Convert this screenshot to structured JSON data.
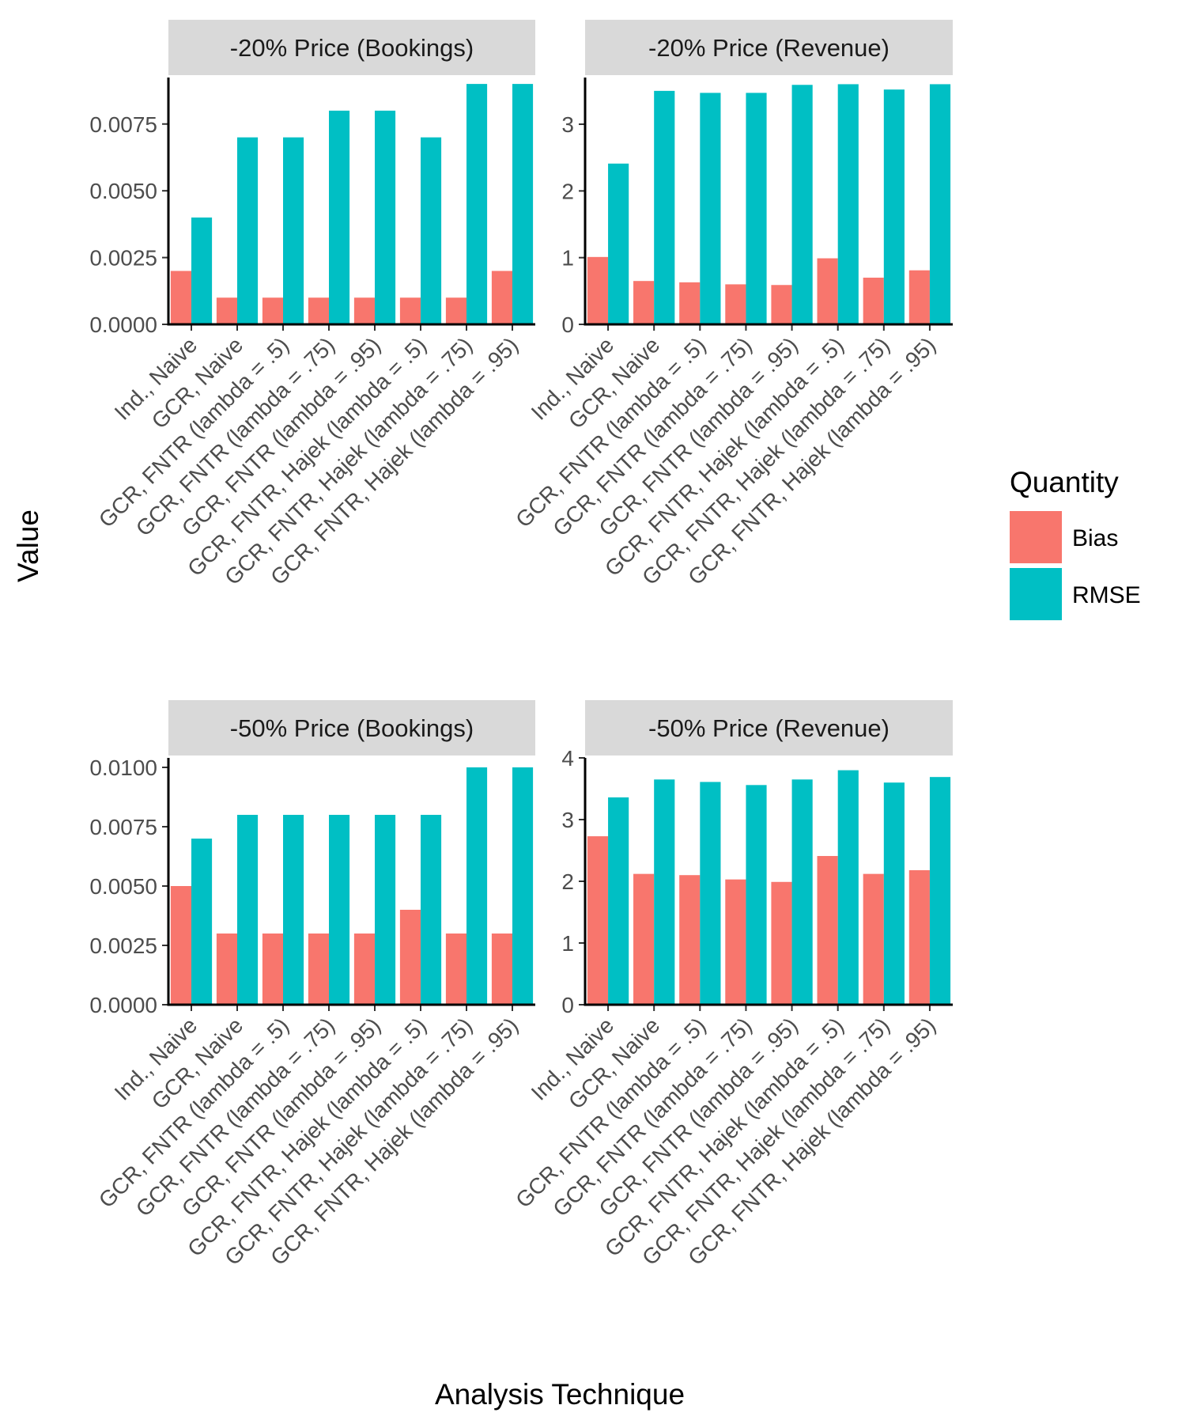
{
  "chart_data": {
    "type": "bar",
    "layout": "facet-grid 2x2",
    "xlabel": "Analysis Technique",
    "ylabel": "Value",
    "categories": [
      "Ind., Naive",
      "GCR, Naive",
      "GCR, FNTR (lambda = .5)",
      "GCR, FNTR (lambda = .75)",
      "GCR, FNTR (lambda = .95)",
      "GCR, FNTR, Hajek (lambda = .5)",
      "GCR, FNTR, Hajek (lambda = .75)",
      "GCR, FNTR, Hajek (lambda = .95)"
    ],
    "legend": {
      "title": "Quantity",
      "position": "right",
      "entries": [
        {
          "name": "Bias",
          "color": "#F8766D"
        },
        {
          "name": "RMSE",
          "color": "#00BFC4"
        }
      ]
    },
    "panels": [
      {
        "title": "-20% Price (Bookings)",
        "ylim": [
          0,
          0.00924
        ],
        "yticks": [
          0,
          0.0025,
          0.005,
          0.0075
        ],
        "ytick_labels": [
          "0.0000",
          "0.0025",
          "0.0050",
          "0.0075"
        ],
        "series": [
          {
            "name": "Bias",
            "values": [
              0.002,
              0.001,
              0.001,
              0.001,
              0.001,
              0.001,
              0.001,
              0.002
            ]
          },
          {
            "name": "RMSE",
            "values": [
              0.004,
              0.007,
              0.007,
              0.008,
              0.008,
              0.007,
              0.009,
              0.009
            ]
          }
        ]
      },
      {
        "title": "-20% Price (Revenue)",
        "ylim": [
          0,
          3.7
        ],
        "yticks": [
          0,
          1,
          2,
          3
        ],
        "ytick_labels": [
          "0",
          "1",
          "2",
          "3"
        ],
        "series": [
          {
            "name": "Bias",
            "values": [
              1.01,
              0.65,
              0.63,
              0.6,
              0.59,
              0.99,
              0.7,
              0.81
            ]
          },
          {
            "name": "RMSE",
            "values": [
              2.41,
              3.5,
              3.47,
              3.47,
              3.59,
              3.6,
              3.52,
              3.6
            ]
          }
        ]
      },
      {
        "title": "-50% Price (Bookings)",
        "ylim": [
          0,
          0.0104
        ],
        "yticks": [
          0,
          0.0025,
          0.005,
          0.0075,
          0.01
        ],
        "ytick_labels": [
          "0.0000",
          "0.0025",
          "0.0050",
          "0.0075",
          "0.0100"
        ],
        "series": [
          {
            "name": "Bias",
            "values": [
              0.005,
              0.003,
              0.003,
              0.003,
              0.003,
              0.004,
              0.003,
              0.003
            ]
          },
          {
            "name": "RMSE",
            "values": [
              0.007,
              0.008,
              0.008,
              0.008,
              0.008,
              0.008,
              0.01,
              0.01
            ]
          }
        ]
      },
      {
        "title": "-50% Price (Revenue)",
        "ylim": [
          0,
          4.0
        ],
        "yticks": [
          0,
          1,
          2,
          3,
          4
        ],
        "ytick_labels": [
          "0",
          "1",
          "2",
          "3",
          "4"
        ],
        "series": [
          {
            "name": "Bias",
            "values": [
              2.73,
              2.12,
              2.1,
              2.03,
              1.99,
              2.41,
              2.12,
              2.18
            ]
          },
          {
            "name": "RMSE",
            "values": [
              3.36,
              3.65,
              3.61,
              3.56,
              3.65,
              3.8,
              3.6,
              3.69
            ]
          }
        ]
      }
    ]
  }
}
